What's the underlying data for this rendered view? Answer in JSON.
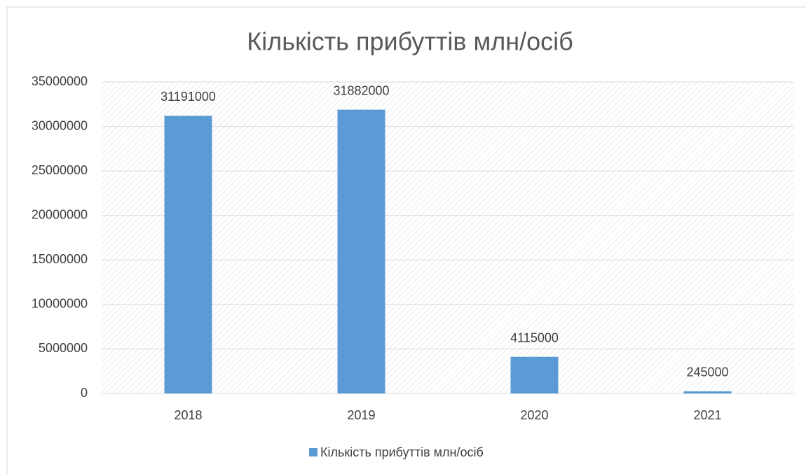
{
  "chart_data": {
    "type": "bar",
    "title": "Кількість прибуттів млн/осіб",
    "categories": [
      "2018",
      "2019",
      "2020",
      "2021"
    ],
    "series": [
      {
        "name": "Кількість прибуттів млн/осіб",
        "color": "#5b9bd5",
        "values": [
          31191000,
          31882000,
          4115000,
          245000
        ]
      }
    ],
    "ylim": [
      0,
      35000000
    ],
    "yticks": [
      0,
      5000000,
      10000000,
      15000000,
      20000000,
      25000000,
      30000000,
      35000000
    ],
    "grid": true,
    "legend": "bottom"
  }
}
